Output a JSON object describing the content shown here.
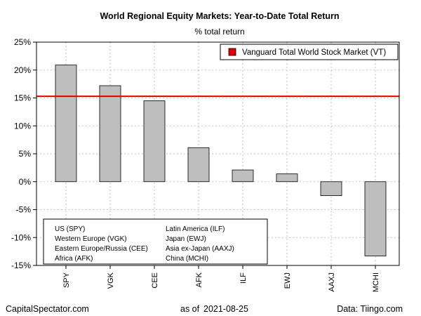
{
  "chart_data": {
    "type": "bar",
    "title": "World Regional Equity Markets: Year-to-Date Total Return",
    "subtitle": "% total return",
    "categories": [
      "SPY",
      "VGK",
      "CEE",
      "AFK",
      "ILF",
      "EWJ",
      "AAXJ",
      "MCHI"
    ],
    "values": [
      20.9,
      17.2,
      14.5,
      6.1,
      2.1,
      1.4,
      -2.5,
      -13.3
    ],
    "ylim": [
      -15,
      25
    ],
    "yticks": [
      25,
      20,
      15,
      10,
      5,
      0,
      -5,
      -10,
      -15
    ],
    "ytick_labels": [
      "25%",
      "20%",
      "15%",
      "10%",
      "5%",
      "0%",
      "-5%",
      "-10%",
      "-15%"
    ],
    "grid": true,
    "bar_color": "#bebebe",
    "reference_line": {
      "label": "Vanguard Total World Stock Market (VT)",
      "value": 15.3,
      "color": "#e00000"
    },
    "legend_position": "top-right",
    "key": [
      "US (SPY)",
      "Western Europe (VGK)",
      "Eastern Europe/Russia (CEE)",
      "Africa (AFK)",
      "Latin America (ILF)",
      "Japan (EWJ)",
      "Asia ex-Japan (AAXJ)",
      "China (MCHI)"
    ],
    "key_position": "bottom-left"
  },
  "footer": {
    "source_left": "CapitalSpectator.com",
    "date_prefix": "as of",
    "date": "2021-08-25",
    "source_right": "Data: Tiingo.com"
  }
}
